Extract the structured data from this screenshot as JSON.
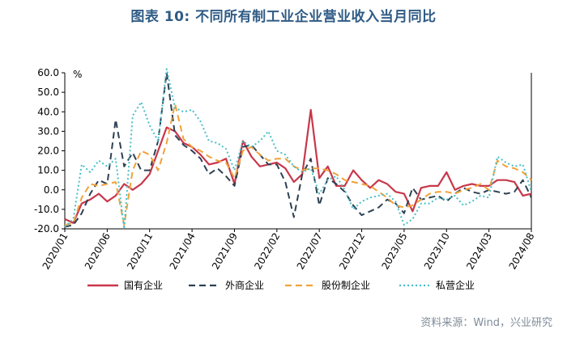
{
  "title": "图表 10: 不同所有制工业企业营业收入当月同比",
  "source": "资料来源：Wind，兴业研究",
  "chart_data": {
    "type": "line",
    "unit_label": "%",
    "ylim": [
      -20,
      60
    ],
    "y_ticks": [
      "60.0",
      "50.0",
      "40.0",
      "30.0",
      "20.0",
      "10.0",
      "0.0",
      "-10.0",
      "-20.0"
    ],
    "x_labels": [
      "2020/01",
      "2020/06",
      "2020/11",
      "2021/04",
      "2021/09",
      "2022/02",
      "2022/07",
      "2022/12",
      "2023/05",
      "2023/10",
      "2024/03",
      "2024/08"
    ],
    "series": [
      {
        "name": "国有企业",
        "color": "#c8374a",
        "dash": "solid",
        "values": [
          -15,
          -17,
          -7,
          -5,
          -2,
          -6,
          -3,
          3,
          0,
          3,
          8,
          20,
          32,
          30,
          24,
          22,
          18,
          13,
          14,
          16,
          3,
          25,
          17,
          12,
          13,
          14,
          11,
          4,
          8,
          41,
          6,
          12,
          2,
          2,
          10,
          5,
          1,
          5,
          3,
          -1,
          -2,
          -11,
          1,
          2,
          2,
          9,
          0,
          2,
          3,
          2,
          2,
          5,
          5,
          4,
          -3,
          -2
        ]
      },
      {
        "name": "外商企业",
        "color": "#2e4053",
        "dash": "dashed",
        "values": [
          -19,
          -18,
          -12,
          -2,
          5,
          3,
          36,
          12,
          19,
          10,
          10,
          25,
          60,
          28,
          23,
          20,
          16,
          8,
          11,
          7,
          2,
          22,
          23,
          18,
          13,
          13,
          4,
          -14,
          8,
          16,
          -8,
          6,
          3,
          -1,
          -8,
          -13,
          -11,
          -9,
          -5,
          -7,
          -12,
          1,
          -5,
          -4,
          -3,
          -6,
          -2,
          1,
          -1,
          -2,
          0,
          -1,
          -2,
          -1,
          5,
          -4
        ]
      },
      {
        "name": "股份制企业",
        "color": "#f0a23a",
        "dash": "dashed",
        "values": [
          -18,
          -17,
          -4,
          3,
          2,
          3,
          4,
          -18,
          10,
          20,
          18,
          10,
          24,
          44,
          26,
          22,
          20,
          17,
          15,
          14,
          6,
          20,
          22,
          18,
          15,
          16,
          16,
          12,
          10,
          11,
          11,
          10,
          8,
          5,
          4,
          3,
          2,
          -1,
          -4,
          -8,
          -9,
          -8,
          -5,
          -2,
          -1,
          -1,
          -2,
          0,
          1,
          3,
          0,
          15,
          12,
          11,
          9,
          5
        ]
      },
      {
        "name": "私营企业",
        "color": "#48c0c8",
        "dash": "dotted",
        "values": [
          -19,
          -15,
          13,
          9,
          15,
          12,
          16,
          -20,
          38,
          45,
          33,
          25,
          62,
          42,
          40,
          41,
          35,
          25,
          24,
          21,
          10,
          25,
          22,
          25,
          30,
          20,
          18,
          12,
          9,
          11,
          -2,
          5,
          7,
          0,
          -10,
          -6,
          -4,
          -3,
          -2,
          -6,
          -18,
          -15,
          -7,
          -7,
          -4,
          -5,
          -3,
          -8,
          -6,
          -3,
          -4,
          17,
          14,
          12,
          13,
          -1
        ]
      }
    ]
  }
}
